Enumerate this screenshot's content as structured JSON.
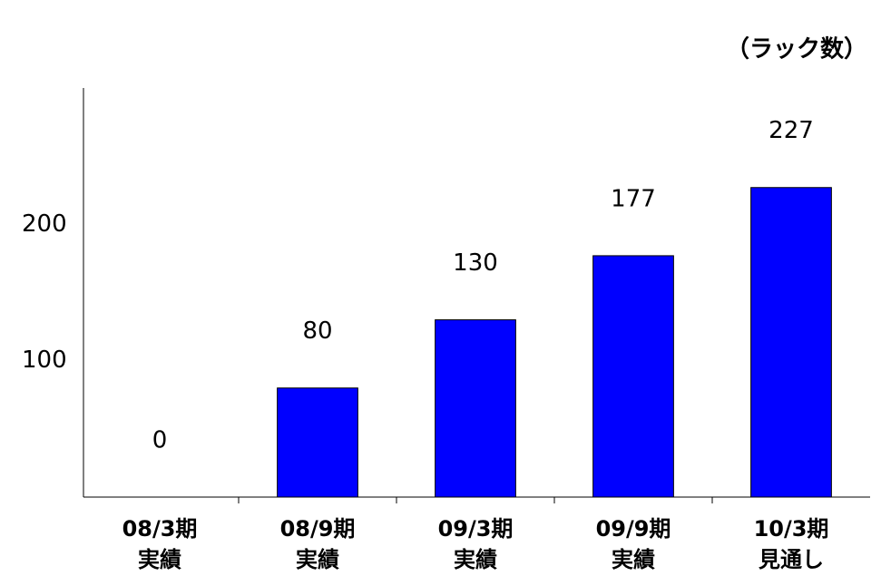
{
  "chart_data": {
    "type": "bar",
    "unit_label": "（ラック数）",
    "categories": [
      "08/3期\n実績",
      "08/9期\n実績",
      "09/3期\n実績",
      "09/9期\n実績",
      "10/3期\n見通し"
    ],
    "values": [
      0,
      80,
      130,
      177,
      227
    ],
    "color": "#0000ff",
    "ylim": [
      0,
      300
    ],
    "yticks": [
      100,
      200
    ],
    "grid": false
  }
}
